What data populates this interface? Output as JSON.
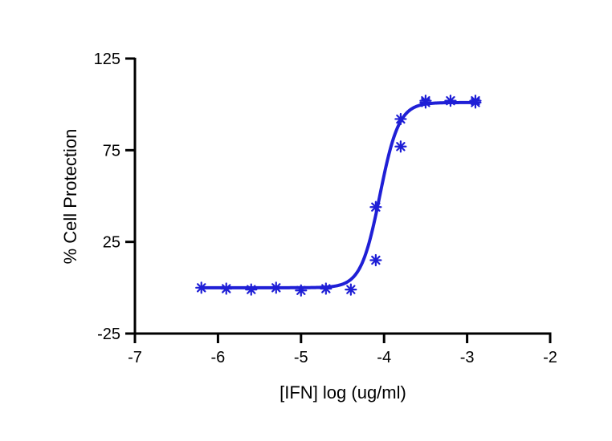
{
  "chart_data": {
    "type": "scatter",
    "xlabel": "[IFN] log (ug/ml)",
    "ylabel": "% Cell Protection",
    "xlim": [
      -7,
      -2
    ],
    "ylim": [
      -25,
      125
    ],
    "x_ticks": [
      -7,
      -6,
      -5,
      -4,
      -3,
      -2
    ],
    "y_ticks": [
      -25,
      25,
      75,
      125
    ],
    "x_tick_labels": [
      "-7",
      "-6",
      "-5",
      "-4",
      "-3",
      "-2"
    ],
    "y_tick_labels": [
      "-25",
      "25",
      "75",
      "125"
    ],
    "grid": false,
    "color": "#1f1fd6",
    "series": [
      {
        "points": [
          {
            "x": -6.2,
            "y": 0
          },
          {
            "x": -5.9,
            "y": -0.5
          },
          {
            "x": -5.6,
            "y": -1
          },
          {
            "x": -5.3,
            "y": 0
          },
          {
            "x": -5.0,
            "y": -1.5
          },
          {
            "x": -4.7,
            "y": -0.5
          },
          {
            "x": -4.4,
            "y": -1
          },
          {
            "x": -4.1,
            "y": 15
          },
          {
            "x": -4.1,
            "y": 44
          },
          {
            "x": -3.8,
            "y": 92
          },
          {
            "x": -3.8,
            "y": 77
          },
          {
            "x": -3.5,
            "y": 102
          },
          {
            "x": -3.5,
            "y": 101
          },
          {
            "x": -3.2,
            "y": 102
          },
          {
            "x": -2.9,
            "y": 102
          },
          {
            "x": -2.9,
            "y": 101
          }
        ],
        "fit": {
          "bottom": 0,
          "top": 101,
          "logEC50": -4.05,
          "hill": 3.8,
          "x_start": -6.2,
          "x_end": -2.9
        }
      }
    ]
  }
}
